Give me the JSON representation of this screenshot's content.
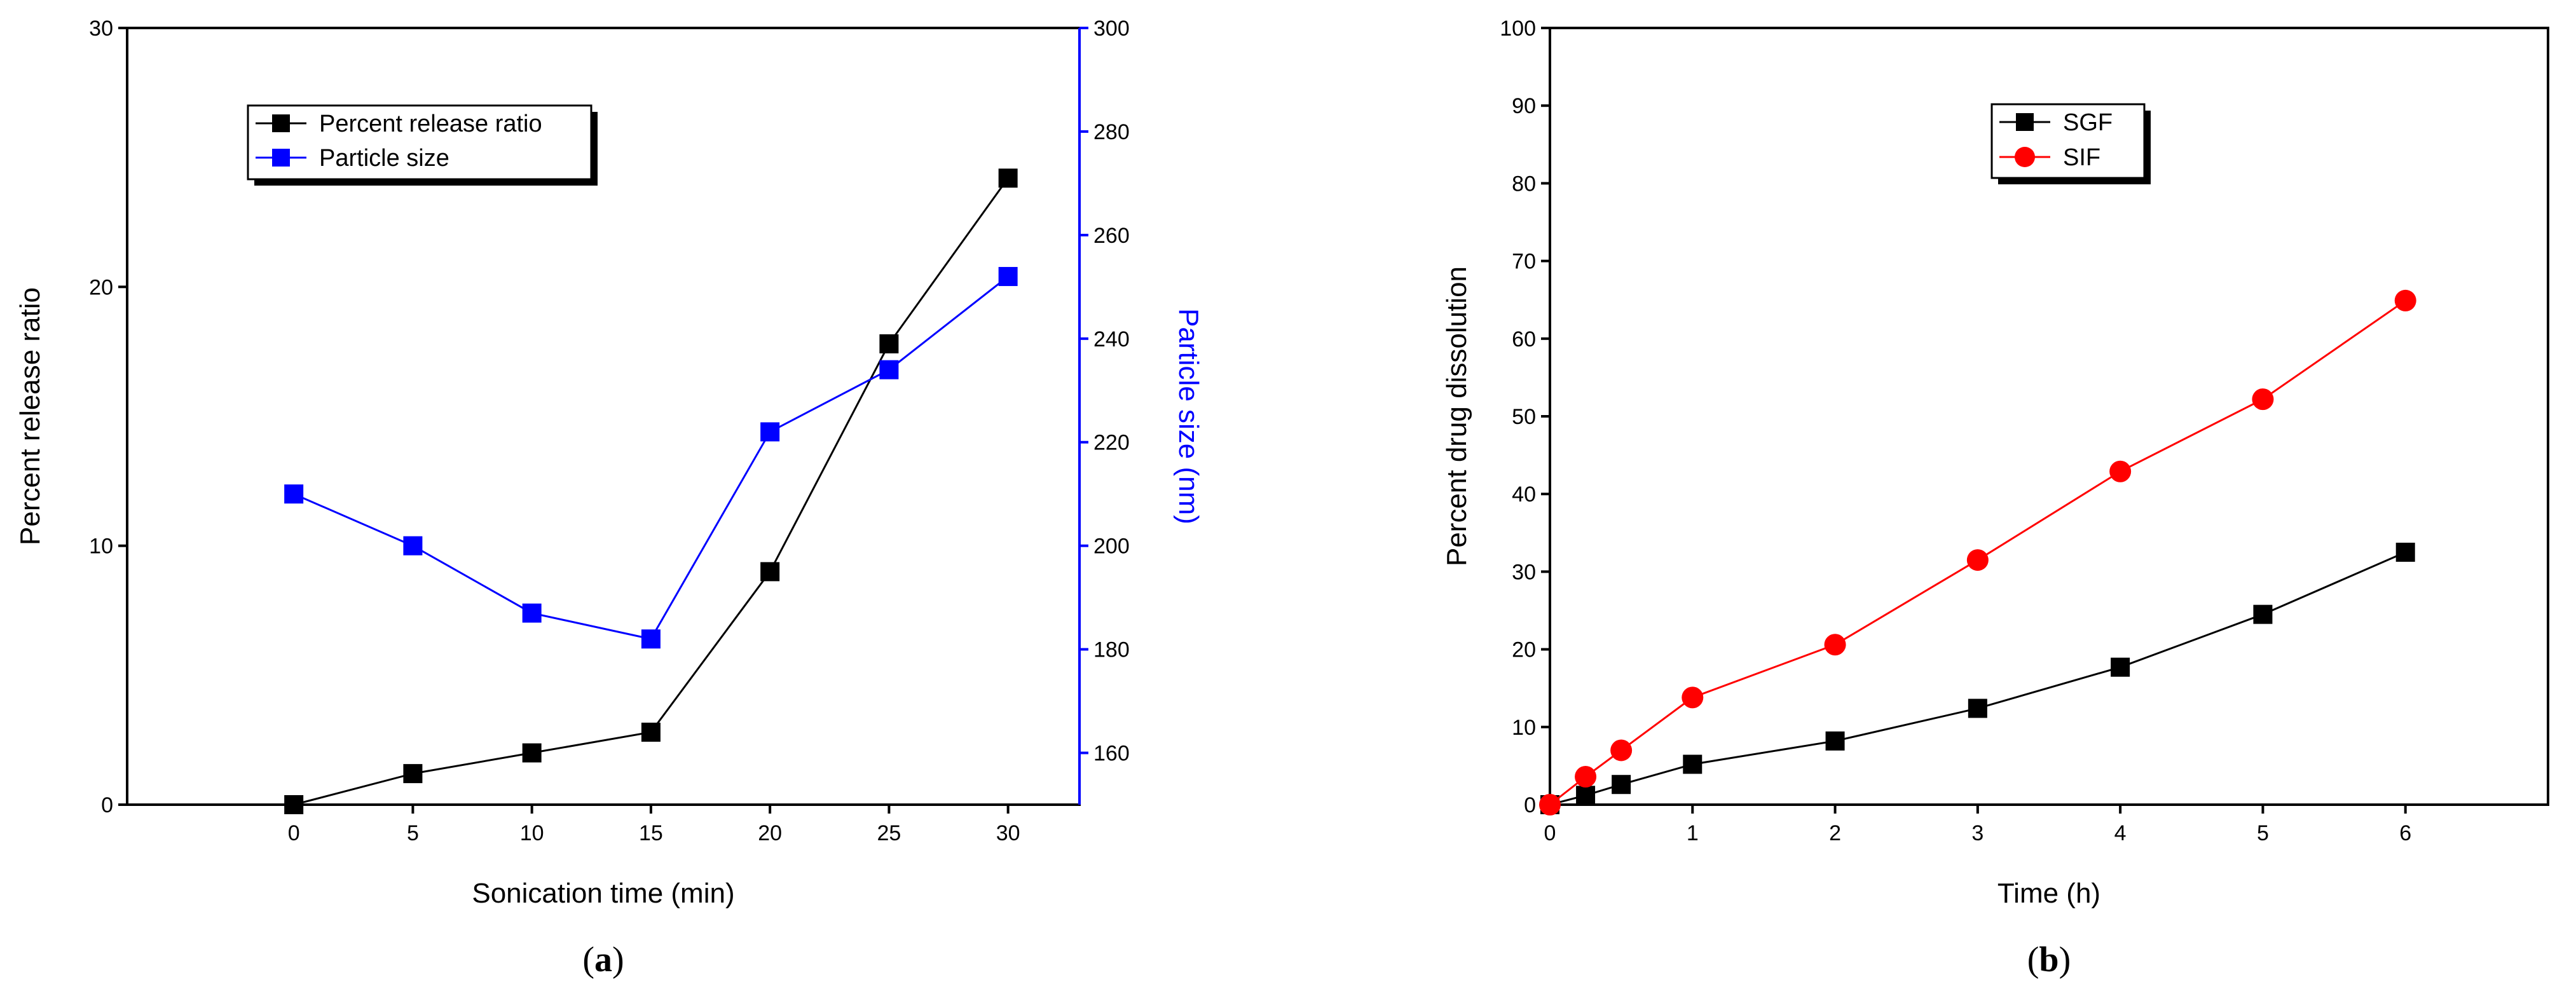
{
  "chart_data": [
    {
      "type": "line",
      "panel_label": "a",
      "xlabel": "Sonication time (min)",
      "ylabel": "Percent release ratio",
      "y2label": "Particle size (nm)",
      "x": [
        0,
        5,
        10,
        15,
        20,
        25,
        30
      ],
      "xlim": [
        -7,
        33
      ],
      "ylim": [
        0,
        30
      ],
      "y2lim": [
        150,
        300
      ],
      "xticks": [
        0,
        5,
        10,
        15,
        20,
        25,
        30
      ],
      "yticks": [
        0,
        10,
        20,
        30
      ],
      "y2ticks": [
        160,
        180,
        200,
        220,
        240,
        260,
        280,
        300
      ],
      "legend_position": "top-left",
      "series": [
        {
          "name": "Percent release ratio",
          "axis": "left",
          "color": "#000000",
          "marker": "square",
          "values": [
            0,
            1.2,
            2.0,
            2.8,
            9.0,
            17.8,
            24.2
          ]
        },
        {
          "name": "Particle size",
          "axis": "right",
          "color": "#0000ff",
          "marker": "square",
          "values": [
            210,
            200,
            187,
            182,
            222,
            234,
            252
          ]
        }
      ]
    },
    {
      "type": "line",
      "panel_label": "b",
      "xlabel": "Time (h)",
      "ylabel": "Percent drug dissolution",
      "x": [
        0,
        0.25,
        0.5,
        1,
        2,
        3,
        4,
        5,
        6
      ],
      "xlim": [
        0,
        7
      ],
      "ylim": [
        0,
        100
      ],
      "xticks": [
        0,
        1,
        2,
        3,
        4,
        5,
        6
      ],
      "yticks": [
        0,
        10,
        20,
        30,
        40,
        50,
        60,
        70,
        80,
        90,
        100
      ],
      "legend_position": "top-center",
      "series": [
        {
          "name": "SGF",
          "color": "#000000",
          "marker": "square",
          "values": [
            0,
            1.2,
            2.6,
            5.2,
            8.2,
            12.4,
            17.7,
            24.5,
            32.5
          ]
        },
        {
          "name": "SIF",
          "color": "#ff0000",
          "marker": "circle",
          "values": [
            0,
            3.6,
            7.0,
            13.8,
            20.6,
            31.5,
            42.9,
            52.2,
            64.9
          ]
        }
      ]
    }
  ]
}
